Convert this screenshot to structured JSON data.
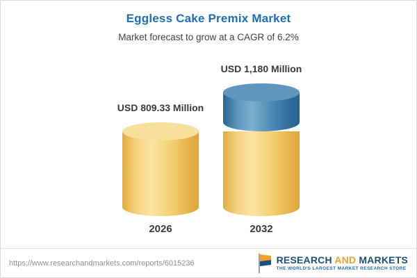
{
  "header": {
    "title": "Eggless Cake Premix Market",
    "subtitle": "Market forecast to grow at a CAGR of 6.2%"
  },
  "chart_data": {
    "type": "bar",
    "variant": "3d-cylinder",
    "title": "Eggless Cake Premix Market",
    "subtitle": "Market forecast to grow at a CAGR of 6.2%",
    "cagr_percent": 6.2,
    "unit": "USD Million",
    "categories": [
      "2026",
      "2032"
    ],
    "values": [
      809.33,
      1180
    ],
    "value_labels": [
      "USD 809.33 Million",
      "USD 1,180 Million"
    ],
    "colors": {
      "base_segment": "#F0C765",
      "growth_segment": "#3D7EAD"
    },
    "notes": "2032 cylinder shows a yellow base equal to the 2026 value with a blue top segment representing growth"
  },
  "footer": {
    "url": "https://www.researchandmarkets.com/reports/6015236",
    "logo": {
      "brand_part1": "RESEARCH",
      "brand_part2": "AND",
      "brand_part3": "MARKETS",
      "tagline": "THE WORLD'S LARGEST MARKET RESEARCH STORE"
    }
  }
}
